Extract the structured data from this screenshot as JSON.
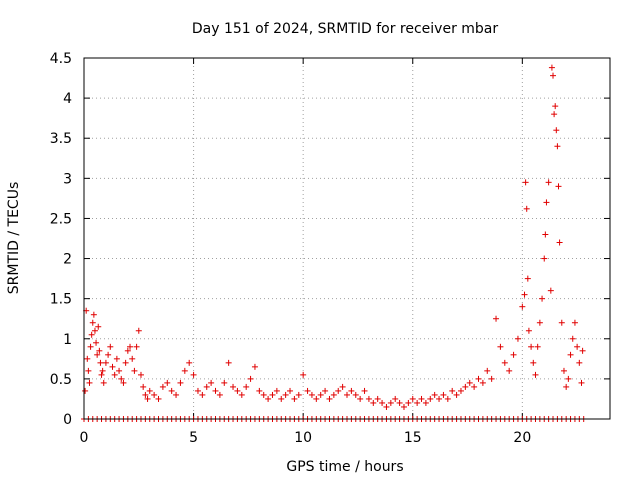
{
  "chart_data": {
    "type": "scatter",
    "title": "Day 151 of 2024, SRMTID for receiver mbar",
    "xlabel": "GPS time / hours",
    "ylabel": "SRMTID / TECUs",
    "xlim": [
      0,
      24
    ],
    "ylim": [
      0,
      4.5
    ],
    "x_ticks": [
      0,
      5,
      10,
      15,
      20
    ],
    "x_tick_labels": [
      "0",
      "5",
      "10",
      "15",
      "20"
    ],
    "y_ticks": [
      0,
      0.5,
      1,
      1.5,
      2,
      2.5,
      3,
      3.5,
      4,
      4.5
    ],
    "y_tick_labels": [
      "0",
      "0.5",
      "1",
      "1.5",
      "2",
      "2.5",
      "3",
      "3.5",
      "4",
      "4.5"
    ],
    "grid": true,
    "marker": "+",
    "marker_color": "#e00000",
    "series": [
      {
        "name": "SRMTID",
        "points": [
          [
            0.05,
            0.35
          ],
          [
            0.1,
            1.35
          ],
          [
            0.15,
            0.75
          ],
          [
            0.2,
            0.6
          ],
          [
            0.25,
            0.45
          ],
          [
            0.3,
            0.9
          ],
          [
            0.35,
            1.05
          ],
          [
            0.4,
            1.2
          ],
          [
            0.45,
            1.3
          ],
          [
            0.5,
            1.1
          ],
          [
            0.55,
            0.95
          ],
          [
            0.6,
            0.8
          ],
          [
            0.65,
            1.15
          ],
          [
            0.7,
            0.85
          ],
          [
            0.75,
            0.7
          ],
          [
            0.8,
            0.55
          ],
          [
            0.85,
            0.6
          ],
          [
            0.9,
            0.45
          ],
          [
            1.0,
            0.7
          ],
          [
            1.1,
            0.8
          ],
          [
            1.2,
            0.9
          ],
          [
            1.3,
            0.65
          ],
          [
            1.4,
            0.55
          ],
          [
            1.5,
            0.75
          ],
          [
            1.6,
            0.6
          ],
          [
            1.7,
            0.5
          ],
          [
            1.8,
            0.45
          ],
          [
            1.9,
            0.7
          ],
          [
            2.0,
            0.85
          ],
          [
            2.1,
            0.9
          ],
          [
            2.2,
            0.75
          ],
          [
            2.3,
            0.6
          ],
          [
            2.4,
            0.9
          ],
          [
            2.5,
            1.1
          ],
          [
            2.6,
            0.55
          ],
          [
            2.7,
            0.4
          ],
          [
            2.8,
            0.3
          ],
          [
            2.9,
            0.25
          ],
          [
            3.0,
            0.35
          ],
          [
            3.2,
            0.3
          ],
          [
            3.4,
            0.25
          ],
          [
            3.6,
            0.4
          ],
          [
            3.8,
            0.45
          ],
          [
            4.0,
            0.35
          ],
          [
            4.2,
            0.3
          ],
          [
            4.4,
            0.45
          ],
          [
            4.6,
            0.6
          ],
          [
            4.8,
            0.7
          ],
          [
            5.0,
            0.55
          ],
          [
            5.2,
            0.35
          ],
          [
            5.4,
            0.3
          ],
          [
            5.6,
            0.4
          ],
          [
            5.8,
            0.45
          ],
          [
            6.0,
            0.35
          ],
          [
            6.2,
            0.3
          ],
          [
            6.4,
            0.45
          ],
          [
            6.6,
            0.7
          ],
          [
            6.8,
            0.4
          ],
          [
            7.0,
            0.35
          ],
          [
            7.2,
            0.3
          ],
          [
            7.4,
            0.4
          ],
          [
            7.6,
            0.5
          ],
          [
            7.8,
            0.65
          ],
          [
            8.0,
            0.35
          ],
          [
            8.2,
            0.3
          ],
          [
            8.4,
            0.25
          ],
          [
            8.6,
            0.3
          ],
          [
            8.8,
            0.35
          ],
          [
            9.0,
            0.25
          ],
          [
            9.2,
            0.3
          ],
          [
            9.4,
            0.35
          ],
          [
            9.6,
            0.25
          ],
          [
            9.8,
            0.3
          ],
          [
            10.0,
            0.55
          ],
          [
            10.2,
            0.35
          ],
          [
            10.4,
            0.3
          ],
          [
            10.6,
            0.25
          ],
          [
            10.8,
            0.3
          ],
          [
            11.0,
            0.35
          ],
          [
            11.2,
            0.25
          ],
          [
            11.4,
            0.3
          ],
          [
            11.6,
            0.35
          ],
          [
            11.8,
            0.4
          ],
          [
            12.0,
            0.3
          ],
          [
            12.2,
            0.35
          ],
          [
            12.4,
            0.3
          ],
          [
            12.6,
            0.25
          ],
          [
            12.8,
            0.35
          ],
          [
            13.0,
            0.25
          ],
          [
            13.2,
            0.2
          ],
          [
            13.4,
            0.25
          ],
          [
            13.6,
            0.2
          ],
          [
            13.8,
            0.15
          ],
          [
            14.0,
            0.2
          ],
          [
            14.2,
            0.25
          ],
          [
            14.4,
            0.2
          ],
          [
            14.6,
            0.15
          ],
          [
            14.8,
            0.2
          ],
          [
            15.0,
            0.25
          ],
          [
            15.2,
            0.2
          ],
          [
            15.4,
            0.25
          ],
          [
            15.6,
            0.2
          ],
          [
            15.8,
            0.25
          ],
          [
            16.0,
            0.3
          ],
          [
            16.2,
            0.25
          ],
          [
            16.4,
            0.3
          ],
          [
            16.6,
            0.25
          ],
          [
            16.8,
            0.35
          ],
          [
            17.0,
            0.3
          ],
          [
            17.2,
            0.35
          ],
          [
            17.4,
            0.4
          ],
          [
            17.6,
            0.45
          ],
          [
            17.8,
            0.4
          ],
          [
            18.0,
            0.5
          ],
          [
            18.2,
            0.45
          ],
          [
            18.4,
            0.6
          ],
          [
            18.6,
            0.5
          ],
          [
            18.8,
            1.25
          ],
          [
            19.0,
            0.9
          ],
          [
            19.2,
            0.7
          ],
          [
            19.4,
            0.6
          ],
          [
            19.6,
            0.8
          ],
          [
            19.8,
            1.0
          ],
          [
            20.0,
            1.4
          ],
          [
            20.1,
            1.55
          ],
          [
            20.15,
            2.95
          ],
          [
            20.2,
            2.62
          ],
          [
            20.25,
            1.75
          ],
          [
            20.3,
            1.1
          ],
          [
            20.4,
            0.9
          ],
          [
            20.5,
            0.7
          ],
          [
            20.6,
            0.55
          ],
          [
            20.7,
            0.9
          ],
          [
            20.8,
            1.2
          ],
          [
            20.9,
            1.5
          ],
          [
            21.0,
            2.0
          ],
          [
            21.05,
            2.3
          ],
          [
            21.1,
            2.7
          ],
          [
            21.2,
            2.95
          ],
          [
            21.3,
            1.6
          ],
          [
            21.35,
            4.38
          ],
          [
            21.4,
            4.28
          ],
          [
            21.45,
            3.8
          ],
          [
            21.5,
            3.9
          ],
          [
            21.55,
            3.6
          ],
          [
            21.6,
            3.4
          ],
          [
            21.65,
            2.9
          ],
          [
            21.7,
            2.2
          ],
          [
            21.8,
            1.2
          ],
          [
            21.9,
            0.6
          ],
          [
            22.0,
            0.4
          ],
          [
            22.1,
            0.5
          ],
          [
            22.2,
            0.8
          ],
          [
            22.3,
            1.0
          ],
          [
            22.4,
            1.2
          ],
          [
            22.5,
            0.9
          ],
          [
            22.6,
            0.7
          ],
          [
            22.7,
            0.45
          ],
          [
            22.75,
            0.85
          ]
        ]
      }
    ],
    "zero_floor_range": [
      0,
      22.9
    ]
  }
}
